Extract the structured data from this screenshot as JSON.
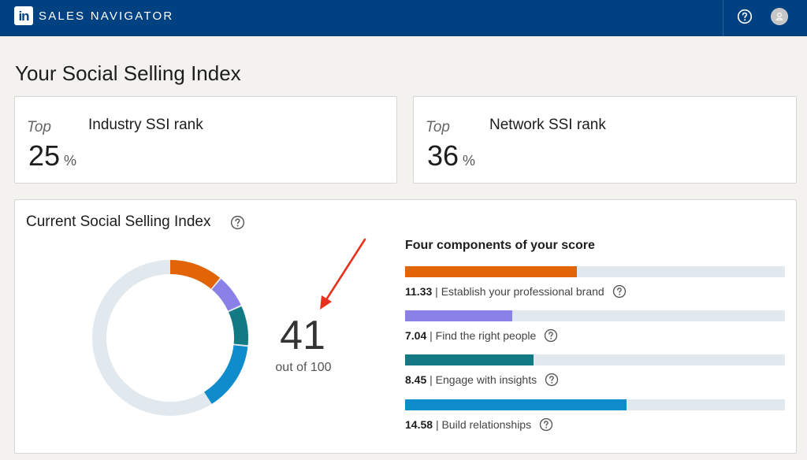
{
  "header": {
    "logo_text": "in",
    "brand": "SALES NAVIGATOR",
    "icons": [
      "help-icon",
      "avatar-icon"
    ]
  },
  "page": {
    "title": "Your Social Selling Index"
  },
  "ranks": [
    {
      "top_label": "Top",
      "title": "Industry SSI rank",
      "value": "25",
      "unit": "%"
    },
    {
      "top_label": "Top",
      "title": "Network SSI rank",
      "value": "36",
      "unit": "%"
    }
  ],
  "ssi": {
    "title": "Current Social Selling Index",
    "score": "41",
    "out_of": "out of 100",
    "max_score": 100,
    "track_color": "#e1e9ee",
    "components_title": "Four components of your score",
    "component_max": 25,
    "components": [
      {
        "value": "11.33",
        "sep": "|",
        "label": "Establish your professional brand",
        "score": 11.33,
        "color": "#e16407"
      },
      {
        "value": "7.04",
        "sep": "|",
        "label": "Find the right people",
        "score": 7.04,
        "color": "#8b7fe8"
      },
      {
        "value": "8.45",
        "sep": "|",
        "label": "Engage with insights",
        "score": 8.45,
        "color": "#117a83"
      },
      {
        "value": "14.58",
        "sep": "|",
        "label": "Build relationships",
        "score": 14.58,
        "color": "#0f8ccb"
      }
    ]
  }
}
